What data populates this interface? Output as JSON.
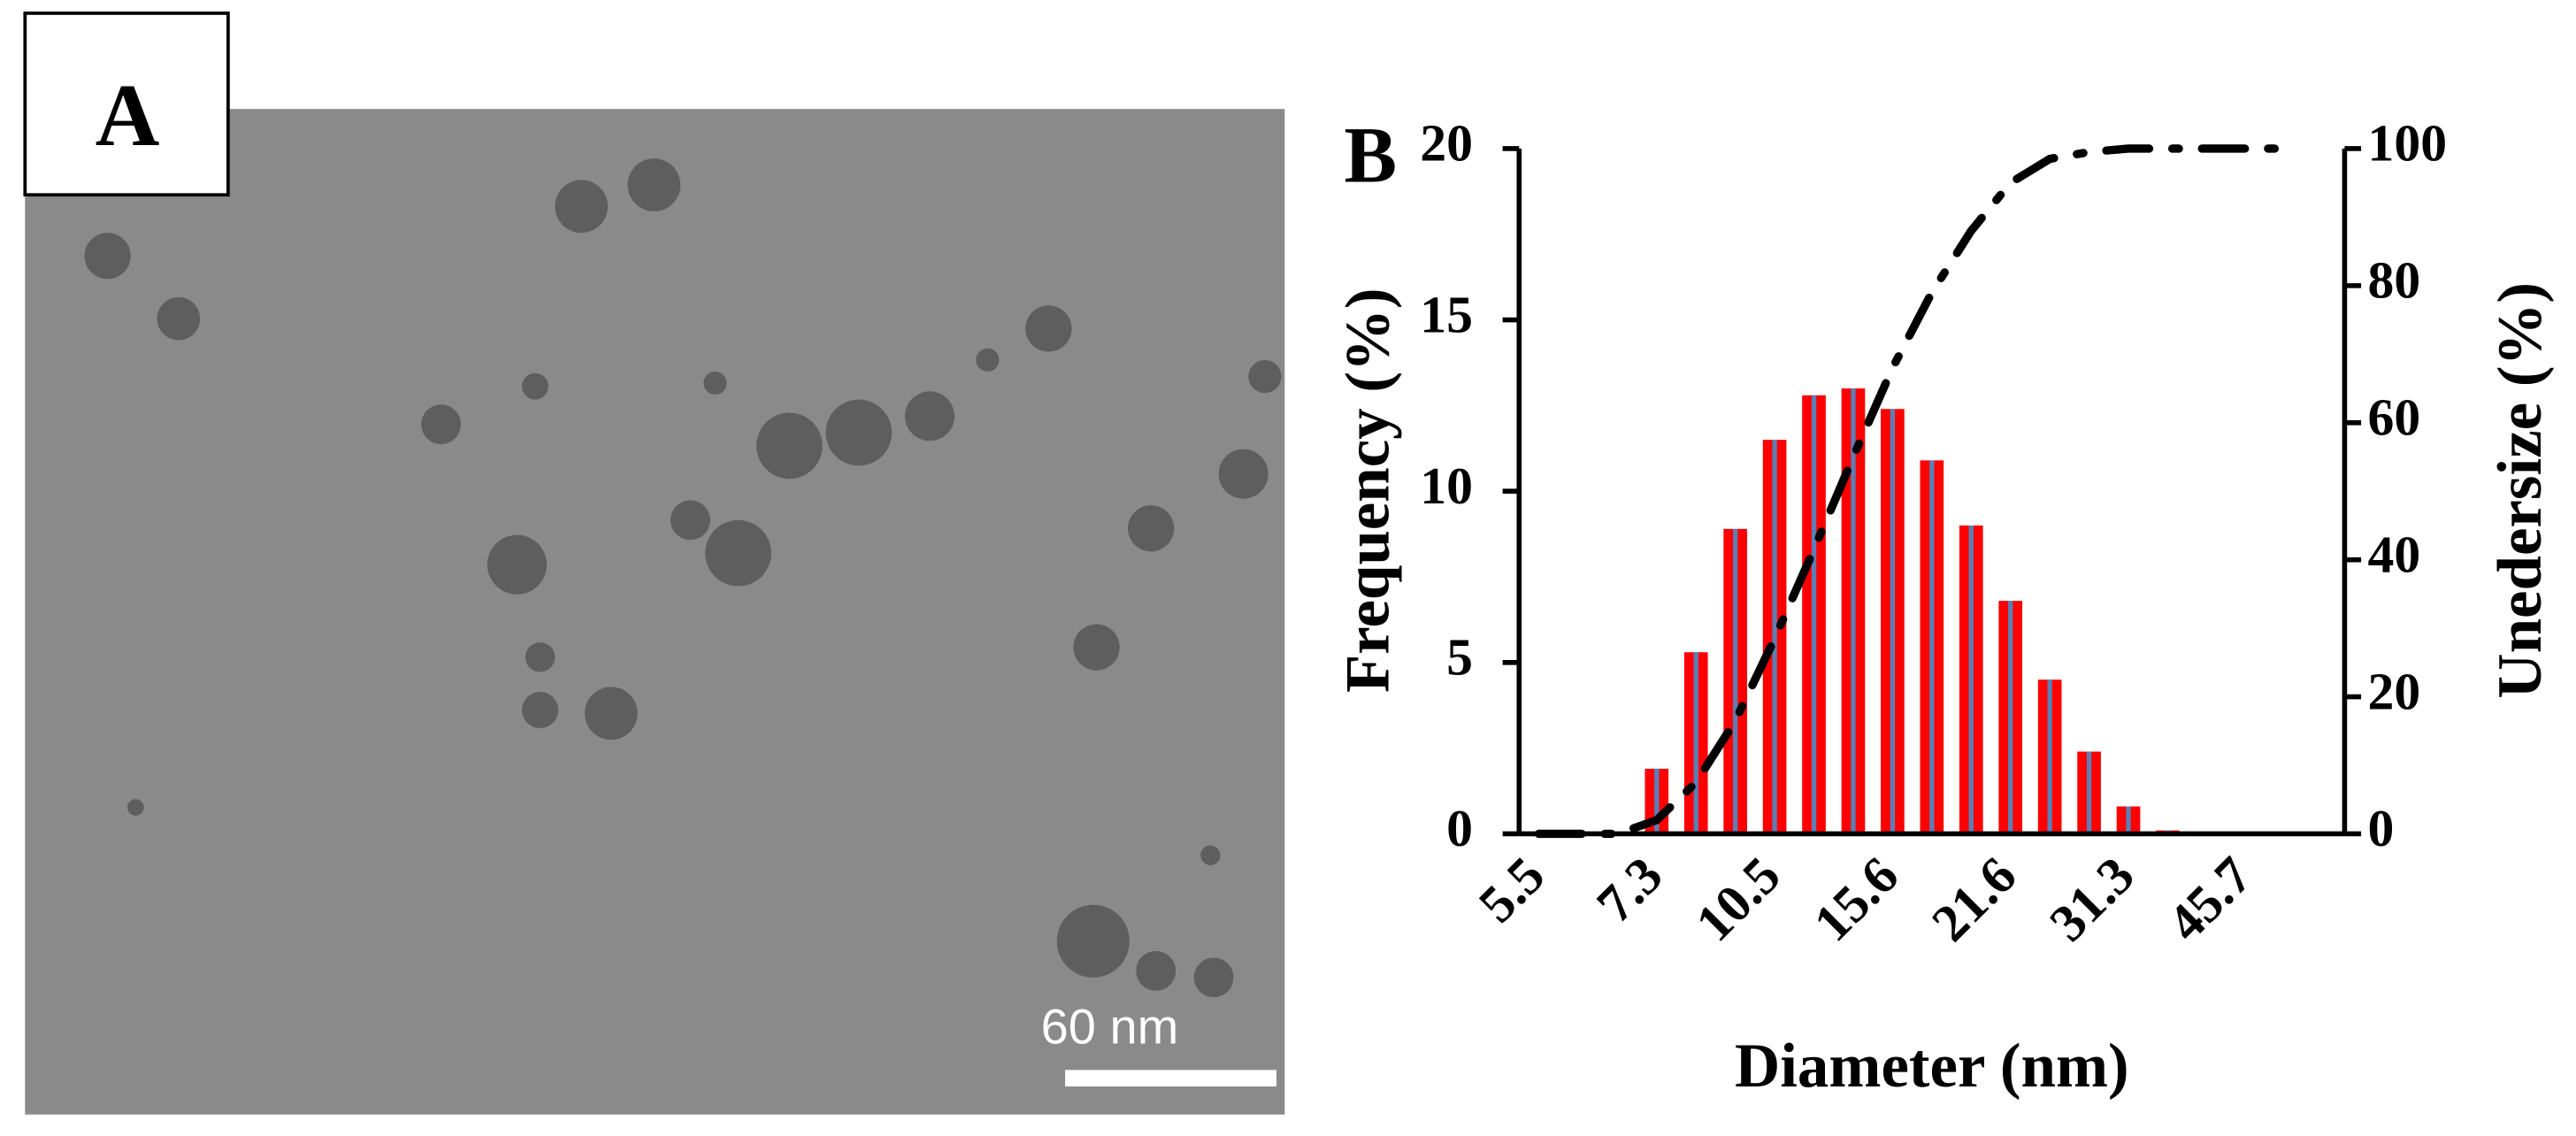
{
  "panel_a": {
    "label": "A",
    "scale_bar": "60 nm"
  },
  "chart_data": {
    "type": "bar",
    "panel_label": "B",
    "x_label": "Diameter (nm)",
    "y_label": "Frequency (%)",
    "y2_label": "Unedersize (%)",
    "categories": [
      "5.5",
      null,
      null,
      "7.3",
      null,
      null,
      "10.5",
      null,
      null,
      "15.6",
      null,
      null,
      "21.6",
      null,
      null,
      "31.3",
      null,
      null,
      "45.7",
      null,
      null
    ],
    "series": [
      {
        "color": "#ff0000",
        "inner_color": "#5b7fb5",
        "values": [
          0,
          0,
          0,
          1.9,
          5.3,
          8.9,
          11.5,
          12.8,
          13.0,
          12.4,
          10.9,
          9.0,
          6.8,
          4.5,
          2.4,
          0.8,
          0.1,
          0,
          0,
          0,
          0
        ]
      },
      {
        "type": "line",
        "axis": "y2",
        "color": "#000000",
        "values": [
          0,
          0,
          0,
          2,
          7.5,
          16.5,
          28.5,
          41.5,
          55,
          68,
          79,
          88,
          95,
          98.5,
          99.5,
          100,
          100,
          100,
          100,
          100,
          null
        ]
      }
    ],
    "ylim": [
      0,
      20
    ],
    "yticks": [
      0,
      5,
      10,
      15,
      20
    ],
    "y2lim": [
      0,
      100
    ],
    "y2ticks": [
      0,
      20,
      40,
      60,
      80,
      100
    ]
  }
}
